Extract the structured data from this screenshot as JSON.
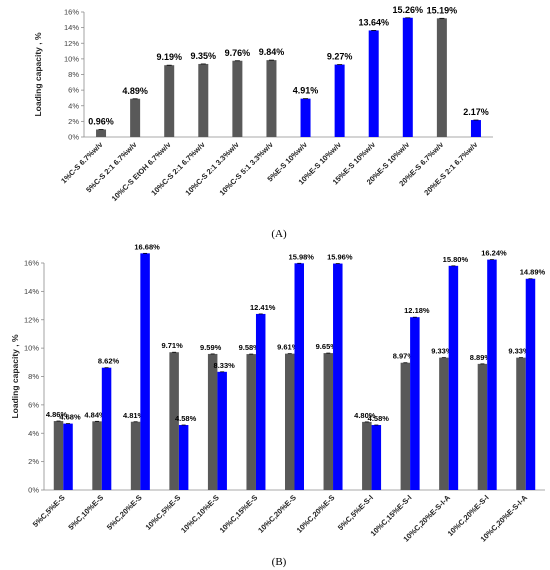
{
  "chart_data": [
    {
      "type": "bar",
      "panel_label": "(A)",
      "ylabel": "Loading capacity , %",
      "ylim": [
        0,
        16
      ],
      "ytick_step": 2,
      "grid": false,
      "categories": [
        "1%C-S 6.7%w/v",
        "5%C-S 2:1 6.7%w/v",
        "10%C-S EtOH 6.7%w/v",
        "10%C-S 2:1 6.7%w/v",
        "10%C-S 2:1 3.3%w/v",
        "10%C-S 5:1 3.3%w/v",
        "5%E-S 10%w/v",
        "10%E-S 10%w/v",
        "15%E-S 10%w/v",
        "20%E-S 10%w/v",
        "20%E-S 6.7%w/v",
        "20%E-S 2:1 6.7%w/v"
      ],
      "values": [
        0.96,
        4.89,
        9.19,
        9.35,
        9.76,
        9.84,
        4.91,
        9.27,
        13.64,
        15.26,
        15.19,
        2.17
      ],
      "data_labels": [
        "0.96%",
        "4.89%",
        "9.19%",
        "9.35%",
        "9.76%",
        "9.84%",
        "4.91%",
        "9.27%",
        "13.64%",
        "15.26%",
        "15.19%",
        "2.17%"
      ],
      "bar_colors": [
        "#595959",
        "#595959",
        "#595959",
        "#595959",
        "#595959",
        "#595959",
        "#0000ff",
        "#0000ff",
        "#0000ff",
        "#0000ff",
        "#595959",
        "#0000ff"
      ]
    },
    {
      "type": "bar",
      "panel_label": "(B)",
      "ylabel": "Loading capacity , %",
      "ylim": [
        0,
        16
      ],
      "ytick_step": 2,
      "grid": false,
      "categories": [
        "5%C,5%E-S",
        "5%C,10%E-S",
        "5%C,20%E-S",
        "10%C,5%E-S",
        "10%C,10%E-S",
        "10%C,15%E-S",
        "10%C,20%E-S",
        "10%C,20%E-S",
        "5%C,5%E-S-I",
        "10%C,15%E-S-I",
        "10%C,20%E-S-I-A",
        "10%C,20%E-S-I",
        "10%C,20%E-S-I-A"
      ],
      "series": [
        {
          "color": "#595959",
          "values": [
            4.86,
            4.84,
            4.81,
            9.71,
            9.59,
            9.58,
            9.61,
            9.65,
            4.8,
            8.97,
            9.33,
            8.89,
            9.33
          ],
          "data_labels": [
            "4.86%",
            "4.84%",
            "4.81%",
            "9.71%",
            "9.59%",
            "9.58%",
            "9.61%",
            "9.65%",
            "4.80%",
            "8.97%",
            "9.33%",
            "8.89%",
            "9.33%"
          ]
        },
        {
          "color": "#0000ff",
          "values": [
            4.68,
            8.62,
            16.68,
            4.58,
            8.33,
            12.41,
            15.98,
            15.96,
            4.58,
            12.18,
            15.8,
            16.24,
            14.89
          ],
          "data_labels": [
            "4.68%",
            "8.62%",
            "16.68%",
            "4.58%",
            "8.33%",
            "12.41%",
            "15.98%",
            "15.96%",
            "4.58%",
            "12.18%",
            "15.80%",
            "16.24%",
            "14.89%"
          ]
        }
      ]
    }
  ]
}
